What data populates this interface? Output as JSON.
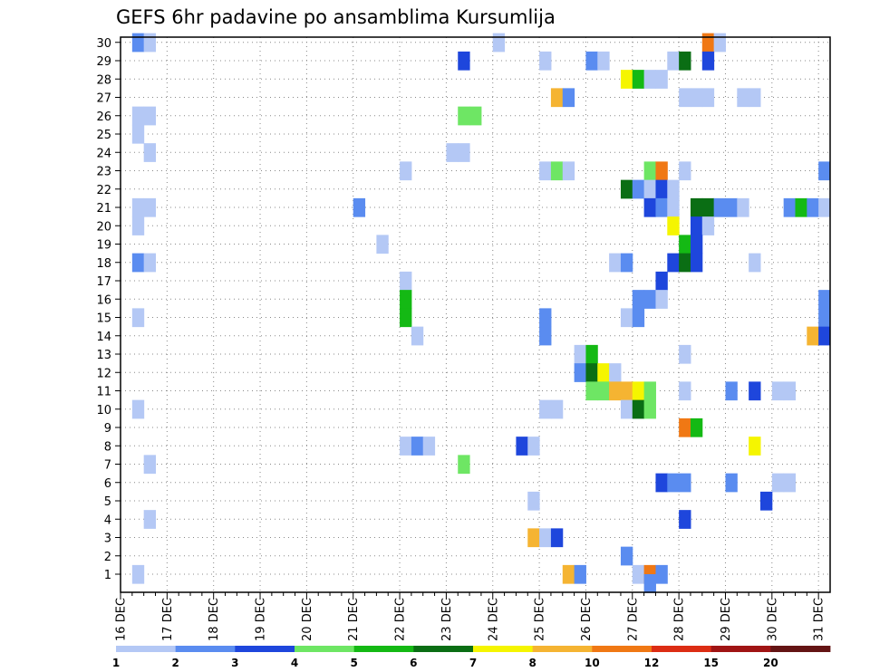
{
  "chart_data": {
    "type": "heatmap",
    "title": "GEFS 6hr padavine po ansamblima Kursumlija",
    "xlabel": "",
    "ylabel": "",
    "x_ticks": [
      "16 DEC",
      "17 DEC",
      "18 DEC",
      "19 DEC",
      "20 DEC",
      "21 DEC",
      "22 DEC",
      "23 DEC",
      "24 DEC",
      "25 DEC",
      "26 DEC",
      "27 DEC",
      "28 DEC",
      "29 DEC",
      "30 DEC",
      "31 DEC"
    ],
    "xlim": [
      "16 DEC 00Z",
      "31 DEC 06Z"
    ],
    "y_ticks": [
      1,
      2,
      3,
      4,
      5,
      6,
      7,
      8,
      9,
      10,
      11,
      12,
      13,
      14,
      15,
      16,
      17,
      18,
      19,
      20,
      21,
      22,
      23,
      24,
      25,
      26,
      27,
      28,
      29,
      30
    ],
    "ylim": [
      0.5,
      30.5
    ],
    "grid": true,
    "legend": {
      "placement": "bottom",
      "levels": [
        1,
        2,
        3,
        4,
        5,
        6,
        7,
        8,
        10,
        12,
        15,
        20
      ],
      "colors": [
        "#b4c8f5",
        "#5a8cf0",
        "#1e46dc",
        "#6ee664",
        "#14b914",
        "#0a6e14",
        "#f5f500",
        "#f5b432",
        "#f07814",
        "#dc2d14",
        "#a01414",
        "#641414"
      ]
    },
    "cells": [
      {
        "t": "16 DEC 06Z",
        "m": 30,
        "v": 2.5
      },
      {
        "t": "16 DEC 12Z",
        "m": 30,
        "v": 1.5
      },
      {
        "t": "24 DEC 00Z",
        "m": 30,
        "v": 1.5
      },
      {
        "t": "28 DEC 12Z",
        "m": 30,
        "v": 11
      },
      {
        "t": "28 DEC 18Z",
        "m": 30,
        "v": 1.5
      },
      {
        "t": "23 DEC 06Z",
        "m": 29,
        "v": 3.5
      },
      {
        "t": "25 DEC 00Z",
        "m": 29,
        "v": 1.5
      },
      {
        "t": "26 DEC 00Z",
        "m": 29,
        "v": 2.5
      },
      {
        "t": "26 DEC 06Z",
        "m": 29,
        "v": 1.5
      },
      {
        "t": "27 DEC 18Z",
        "m": 29,
        "v": 1.5
      },
      {
        "t": "28 DEC 00Z",
        "m": 29,
        "v": 6.5
      },
      {
        "t": "28 DEC 12Z",
        "m": 29,
        "v": 3.5
      },
      {
        "t": "26 DEC 18Z",
        "m": 28,
        "v": 7.5
      },
      {
        "t": "27 DEC 00Z",
        "m": 28,
        "v": 5.5
      },
      {
        "t": "27 DEC 06Z",
        "m": 28,
        "v": 1.5
      },
      {
        "t": "27 DEC 12Z",
        "m": 28,
        "v": 1.5
      },
      {
        "t": "25 DEC 06Z",
        "m": 27,
        "v": 9
      },
      {
        "t": "25 DEC 12Z",
        "m": 27,
        "v": 2.5
      },
      {
        "t": "28 DEC 00Z",
        "m": 27,
        "v": 1.5
      },
      {
        "t": "28 DEC 06Z",
        "m": 27,
        "v": 1.5
      },
      {
        "t": "28 DEC 12Z",
        "m": 27,
        "v": 1.5
      },
      {
        "t": "29 DEC 06Z",
        "m": 27,
        "v": 1.5
      },
      {
        "t": "29 DEC 12Z",
        "m": 27,
        "v": 1.5
      },
      {
        "t": "16 DEC 06Z",
        "m": 26,
        "v": 1.5
      },
      {
        "t": "16 DEC 12Z",
        "m": 26,
        "v": 1.5
      },
      {
        "t": "23 DEC 06Z",
        "m": 26,
        "v": 4.5
      },
      {
        "t": "23 DEC 12Z",
        "m": 26,
        "v": 4.5
      },
      {
        "t": "16 DEC 06Z",
        "m": 25,
        "v": 1.5
      },
      {
        "t": "16 DEC 12Z",
        "m": 24,
        "v": 1.5
      },
      {
        "t": "23 DEC 00Z",
        "m": 24,
        "v": 1.5
      },
      {
        "t": "23 DEC 06Z",
        "m": 24,
        "v": 1.5
      },
      {
        "t": "22 DEC 00Z",
        "m": 23,
        "v": 1.5
      },
      {
        "t": "25 DEC 00Z",
        "m": 23,
        "v": 1.5
      },
      {
        "t": "25 DEC 06Z",
        "m": 23,
        "v": 4.5
      },
      {
        "t": "25 DEC 12Z",
        "m": 23,
        "v": 1.5
      },
      {
        "t": "27 DEC 06Z",
        "m": 23,
        "v": 4.5
      },
      {
        "t": "27 DEC 12Z",
        "m": 23,
        "v": 11
      },
      {
        "t": "28 DEC 00Z",
        "m": 23,
        "v": 1.5
      },
      {
        "t": "31 DEC 00Z",
        "m": 23,
        "v": 2.5
      },
      {
        "t": "26 DEC 18Z",
        "m": 22,
        "v": 6.5
      },
      {
        "t": "27 DEC 00Z",
        "m": 22,
        "v": 2.5
      },
      {
        "t": "27 DEC 06Z",
        "m": 22,
        "v": 1.5
      },
      {
        "t": "27 DEC 12Z",
        "m": 22,
        "v": 3.5
      },
      {
        "t": "27 DEC 18Z",
        "m": 22,
        "v": 1.5
      },
      {
        "t": "16 DEC 06Z",
        "m": 21,
        "v": 1.5
      },
      {
        "t": "16 DEC 12Z",
        "m": 21,
        "v": 1.5
      },
      {
        "t": "21 DEC 00Z",
        "m": 21,
        "v": 2.5
      },
      {
        "t": "27 DEC 06Z",
        "m": 21,
        "v": 3.5
      },
      {
        "t": "27 DEC 12Z",
        "m": 21,
        "v": 2.5
      },
      {
        "t": "27 DEC 18Z",
        "m": 21,
        "v": 1.5
      },
      {
        "t": "28 DEC 06Z",
        "m": 21,
        "v": 6.5
      },
      {
        "t": "28 DEC 12Z",
        "m": 21,
        "v": 6.5
      },
      {
        "t": "28 DEC 18Z",
        "m": 21,
        "v": 2.5
      },
      {
        "t": "29 DEC 00Z",
        "m": 21,
        "v": 2.5
      },
      {
        "t": "29 DEC 06Z",
        "m": 21,
        "v": 1.5
      },
      {
        "t": "30 DEC 06Z",
        "m": 21,
        "v": 2.5
      },
      {
        "t": "30 DEC 12Z",
        "m": 21,
        "v": 5.5
      },
      {
        "t": "30 DEC 18Z",
        "m": 21,
        "v": 2.5
      },
      {
        "t": "31 DEC 00Z",
        "m": 21,
        "v": 1.5
      },
      {
        "t": "16 DEC 06Z",
        "m": 20,
        "v": 1.5
      },
      {
        "t": "27 DEC 18Z",
        "m": 20,
        "v": 7.5
      },
      {
        "t": "28 DEC 06Z",
        "m": 20,
        "v": 3.5
      },
      {
        "t": "28 DEC 12Z",
        "m": 20,
        "v": 1.5
      },
      {
        "t": "21 DEC 12Z",
        "m": 19,
        "v": 1.5
      },
      {
        "t": "28 DEC 00Z",
        "m": 19,
        "v": 5.5
      },
      {
        "t": "28 DEC 06Z",
        "m": 19,
        "v": 3.5
      },
      {
        "t": "16 DEC 06Z",
        "m": 18,
        "v": 2.5
      },
      {
        "t": "16 DEC 12Z",
        "m": 18,
        "v": 1.5
      },
      {
        "t": "26 DEC 12Z",
        "m": 18,
        "v": 1.5
      },
      {
        "t": "26 DEC 18Z",
        "m": 18,
        "v": 2.5
      },
      {
        "t": "27 DEC 18Z",
        "m": 18,
        "v": 3.5
      },
      {
        "t": "28 DEC 00Z",
        "m": 18,
        "v": 6.5
      },
      {
        "t": "28 DEC 06Z",
        "m": 18,
        "v": 3.5
      },
      {
        "t": "29 DEC 12Z",
        "m": 18,
        "v": 1.5
      },
      {
        "t": "22 DEC 00Z",
        "m": 17,
        "v": 1.5
      },
      {
        "t": "27 DEC 12Z",
        "m": 17,
        "v": 3.5
      },
      {
        "t": "22 DEC 00Z",
        "m": 16,
        "v": 5.5
      },
      {
        "t": "27 DEC 00Z",
        "m": 16,
        "v": 2.5
      },
      {
        "t": "27 DEC 06Z",
        "m": 16,
        "v": 2.5
      },
      {
        "t": "27 DEC 12Z",
        "m": 16,
        "v": 1.5
      },
      {
        "t": "31 DEC 00Z",
        "m": 16,
        "v": 2.5
      },
      {
        "t": "16 DEC 06Z",
        "m": 15,
        "v": 1.5
      },
      {
        "t": "22 DEC 00Z",
        "m": 15,
        "v": 5.5
      },
      {
        "t": "25 DEC 00Z",
        "m": 15,
        "v": 2.5
      },
      {
        "t": "26 DEC 18Z",
        "m": 15,
        "v": 1.5
      },
      {
        "t": "27 DEC 00Z",
        "m": 15,
        "v": 2.5
      },
      {
        "t": "31 DEC 00Z",
        "m": 15,
        "v": 2.5
      },
      {
        "t": "22 DEC 06Z",
        "m": 14,
        "v": 1.5
      },
      {
        "t": "25 DEC 00Z",
        "m": 14,
        "v": 2.5
      },
      {
        "t": "30 DEC 18Z",
        "m": 14,
        "v": 9
      },
      {
        "t": "31 DEC 00Z",
        "m": 14,
        "v": 3.5
      },
      {
        "t": "25 DEC 18Z",
        "m": 13,
        "v": 1.5
      },
      {
        "t": "26 DEC 00Z",
        "m": 13,
        "v": 5.5
      },
      {
        "t": "28 DEC 00Z",
        "m": 13,
        "v": 1.5
      },
      {
        "t": "25 DEC 18Z",
        "m": 12,
        "v": 2.5
      },
      {
        "t": "26 DEC 00Z",
        "m": 12,
        "v": 6.5
      },
      {
        "t": "26 DEC 06Z",
        "m": 12,
        "v": 7.5
      },
      {
        "t": "26 DEC 12Z",
        "m": 12,
        "v": 1.5
      },
      {
        "t": "26 DEC 00Z",
        "m": 11,
        "v": 4.5
      },
      {
        "t": "26 DEC 06Z",
        "m": 11,
        "v": 4.5
      },
      {
        "t": "26 DEC 12Z",
        "m": 11,
        "v": 9
      },
      {
        "t": "26 DEC 18Z",
        "m": 11,
        "v": 9
      },
      {
        "t": "27 DEC 00Z",
        "m": 11,
        "v": 7.5
      },
      {
        "t": "27 DEC 06Z",
        "m": 11,
        "v": 4.5
      },
      {
        "t": "28 DEC 00Z",
        "m": 11,
        "v": 1.5
      },
      {
        "t": "29 DEC 00Z",
        "m": 11,
        "v": 2.5
      },
      {
        "t": "29 DEC 12Z",
        "m": 11,
        "v": 3.5
      },
      {
        "t": "30 DEC 00Z",
        "m": 11,
        "v": 1.5
      },
      {
        "t": "30 DEC 06Z",
        "m": 11,
        "v": 1.5
      },
      {
        "t": "16 DEC 06Z",
        "m": 10,
        "v": 1.5
      },
      {
        "t": "25 DEC 00Z",
        "m": 10,
        "v": 1.5
      },
      {
        "t": "25 DEC 06Z",
        "m": 10,
        "v": 1.5
      },
      {
        "t": "26 DEC 18Z",
        "m": 10,
        "v": 1.5
      },
      {
        "t": "27 DEC 00Z",
        "m": 10,
        "v": 6.5
      },
      {
        "t": "27 DEC 06Z",
        "m": 10,
        "v": 4.5
      },
      {
        "t": "28 DEC 00Z",
        "m": 9,
        "v": 11
      },
      {
        "t": "28 DEC 06Z",
        "m": 9,
        "v": 5.5
      },
      {
        "t": "22 DEC 00Z",
        "m": 8,
        "v": 1.5
      },
      {
        "t": "22 DEC 06Z",
        "m": 8,
        "v": 2.5
      },
      {
        "t": "22 DEC 12Z",
        "m": 8,
        "v": 1.5
      },
      {
        "t": "24 DEC 12Z",
        "m": 8,
        "v": 3.5
      },
      {
        "t": "24 DEC 18Z",
        "m": 8,
        "v": 1.5
      },
      {
        "t": "29 DEC 12Z",
        "m": 8,
        "v": 7.5
      },
      {
        "t": "16 DEC 12Z",
        "m": 7,
        "v": 1.5
      },
      {
        "t": "23 DEC 06Z",
        "m": 7,
        "v": 4.5
      },
      {
        "t": "27 DEC 12Z",
        "m": 6,
        "v": 3.5
      },
      {
        "t": "27 DEC 18Z",
        "m": 6,
        "v": 2.5
      },
      {
        "t": "28 DEC 00Z",
        "m": 6,
        "v": 2.5
      },
      {
        "t": "29 DEC 00Z",
        "m": 6,
        "v": 2.5
      },
      {
        "t": "30 DEC 00Z",
        "m": 6,
        "v": 1.5
      },
      {
        "t": "30 DEC 06Z",
        "m": 6,
        "v": 1.5
      },
      {
        "t": "24 DEC 18Z",
        "m": 5,
        "v": 1.5
      },
      {
        "t": "29 DEC 18Z",
        "m": 5,
        "v": 3.5
      },
      {
        "t": "16 DEC 12Z",
        "m": 4,
        "v": 1.5
      },
      {
        "t": "28 DEC 00Z",
        "m": 4,
        "v": 3.5
      },
      {
        "t": "24 DEC 18Z",
        "m": 3,
        "v": 9
      },
      {
        "t": "25 DEC 00Z",
        "m": 3,
        "v": 1.5
      },
      {
        "t": "25 DEC 06Z",
        "m": 3,
        "v": 3.5
      },
      {
        "t": "26 DEC 18Z",
        "m": 2,
        "v": 2.5
      },
      {
        "t": "16 DEC 06Z",
        "m": 1,
        "v": 1.5
      },
      {
        "t": "25 DEC 12Z",
        "m": 1,
        "v": 9
      },
      {
        "t": "25 DEC 18Z",
        "m": 1,
        "v": 2.5
      },
      {
        "t": "27 DEC 00Z",
        "m": 1,
        "v": 1.5
      },
      {
        "t": "27 DEC 06Z",
        "m": 1,
        "v": 11
      },
      {
        "t": "27 DEC 12Z",
        "m": 1,
        "v": 2.5
      },
      {
        "t": "27 DEC 06Z",
        "m": 0.5,
        "v": 2.5
      }
    ]
  }
}
